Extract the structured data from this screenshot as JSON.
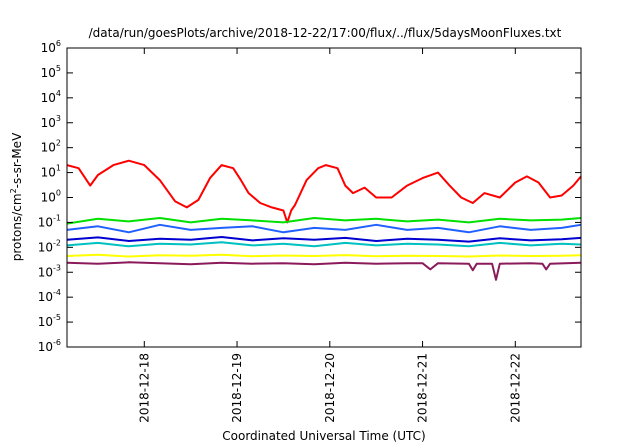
{
  "chart_data": {
    "type": "line",
    "title": "/data/run/goesPlots/archive/2018-12-22/17:00/flux/../flux/5daysMoonFluxes.txt",
    "xlabel": "Coordinated Universal Time (UTC)",
    "ylabel": "protons/cm²-s-sr-MeV",
    "ylabel_parts": {
      "base": "protons/cm",
      "sup": "2",
      "rest": "-s-sr-MeV"
    },
    "y_scale": "log",
    "ylim": [
      1e-06,
      1000000.0
    ],
    "xlim": [
      "2018-12-17T04:00",
      "2018-12-22T17:00"
    ],
    "x_ticks": [
      "2018-12-18",
      "2018-12-19",
      "2018-12-20",
      "2018-12-21",
      "2018-12-22"
    ],
    "y_ticks": [
      {
        "value": 1e-06,
        "base": "10",
        "exp": "-6"
      },
      {
        "value": 1e-05,
        "base": "10",
        "exp": "-5"
      },
      {
        "value": 0.0001,
        "base": "10",
        "exp": "-4"
      },
      {
        "value": 0.001,
        "base": "10",
        "exp": "-3"
      },
      {
        "value": 0.01,
        "base": "10",
        "exp": "-2"
      },
      {
        "value": 0.1,
        "base": "10",
        "exp": "-1"
      },
      {
        "value": 1.0,
        "base": "10",
        "exp": "0"
      },
      {
        "value": 10.0,
        "base": "10",
        "exp": "1"
      },
      {
        "value": 100.0,
        "base": "10",
        "exp": "2"
      },
      {
        "value": 1000.0,
        "base": "10",
        "exp": "3"
      },
      {
        "value": 10000.0,
        "base": "10",
        "exp": "4"
      },
      {
        "value": 100000.0,
        "base": "10",
        "exp": "5"
      },
      {
        "value": 1000000.0,
        "base": "10",
        "exp": "6"
      }
    ],
    "grid": false,
    "legend": "none",
    "series": [
      {
        "color": "#ff0000",
        "x": [
          "2018-12-17T04:00",
          "2018-12-17T07:00",
          "2018-12-17T10:00",
          "2018-12-17T12:00",
          "2018-12-17T16:00",
          "2018-12-17T20:00",
          "2018-12-18T00:00",
          "2018-12-18T04:00",
          "2018-12-18T08:00",
          "2018-12-18T11:00",
          "2018-12-18T14:00",
          "2018-12-18T17:00",
          "2018-12-18T20:00",
          "2018-12-18T23:00",
          "2018-12-19T01:00",
          "2018-12-19T03:00",
          "2018-12-19T06:00",
          "2018-12-19T09:00",
          "2018-12-19T12:00",
          "2018-12-19T13:00",
          "2018-12-19T14:00",
          "2018-12-19T15:00",
          "2018-12-19T18:00",
          "2018-12-19T21:00",
          "2018-12-19T23:00",
          "2018-12-20T02:00",
          "2018-12-20T04:00",
          "2018-12-20T06:00",
          "2018-12-20T09:00",
          "2018-12-20T12:00",
          "2018-12-20T16:00",
          "2018-12-20T20:00",
          "2018-12-21T00:00",
          "2018-12-21T04:00",
          "2018-12-21T07:00",
          "2018-12-21T10:00",
          "2018-12-21T13:00",
          "2018-12-21T16:00",
          "2018-12-21T20:00",
          "2018-12-22T00:00",
          "2018-12-22T03:00",
          "2018-12-22T06:00",
          "2018-12-22T09:00",
          "2018-12-22T12:00",
          "2018-12-22T15:00",
          "2018-12-22T17:00"
        ],
        "y": [
          20,
          15,
          3,
          8,
          20,
          30,
          20,
          5,
          0.7,
          0.4,
          0.8,
          6,
          20,
          15,
          5,
          1.5,
          0.6,
          0.4,
          0.3,
          0.1,
          0.3,
          0.5,
          5,
          15,
          20,
          15,
          3,
          1.5,
          2.5,
          1,
          1,
          3,
          6,
          10,
          3,
          1,
          0.6,
          1.5,
          1,
          4,
          7,
          4,
          1,
          1.2,
          3,
          7
        ]
      },
      {
        "color": "#00e000",
        "x": [
          "2018-12-17T04:00",
          "2018-12-17T12:00",
          "2018-12-17T20:00",
          "2018-12-18T04:00",
          "2018-12-18T12:00",
          "2018-12-18T20:00",
          "2018-12-19T04:00",
          "2018-12-19T12:00",
          "2018-12-19T20:00",
          "2018-12-20T04:00",
          "2018-12-20T12:00",
          "2018-12-20T20:00",
          "2018-12-21T04:00",
          "2018-12-21T12:00",
          "2018-12-21T20:00",
          "2018-12-22T04:00",
          "2018-12-22T12:00",
          "2018-12-22T17:00"
        ],
        "y": [
          0.09,
          0.14,
          0.11,
          0.15,
          0.1,
          0.14,
          0.12,
          0.1,
          0.15,
          0.12,
          0.14,
          0.11,
          0.13,
          0.1,
          0.14,
          0.12,
          0.13,
          0.15
        ]
      },
      {
        "color": "#00c0c0",
        "x": [
          "2018-12-17T04:00",
          "2018-12-17T12:00",
          "2018-12-17T20:00",
          "2018-12-18T04:00",
          "2018-12-18T12:00",
          "2018-12-18T20:00",
          "2018-12-19T04:00",
          "2018-12-19T12:00",
          "2018-12-19T20:00",
          "2018-12-20T04:00",
          "2018-12-20T12:00",
          "2018-12-20T20:00",
          "2018-12-21T04:00",
          "2018-12-21T12:00",
          "2018-12-21T20:00",
          "2018-12-22T04:00",
          "2018-12-22T12:00",
          "2018-12-22T17:00"
        ],
        "y": [
          0.012,
          0.015,
          0.011,
          0.014,
          0.013,
          0.016,
          0.012,
          0.014,
          0.011,
          0.015,
          0.012,
          0.014,
          0.013,
          0.011,
          0.015,
          0.012,
          0.014,
          0.013
        ]
      },
      {
        "color": "#2060ff",
        "x": [
          "2018-12-17T04:00",
          "2018-12-17T12:00",
          "2018-12-17T20:00",
          "2018-12-18T04:00",
          "2018-12-18T12:00",
          "2018-12-18T20:00",
          "2018-12-19T04:00",
          "2018-12-19T12:00",
          "2018-12-19T20:00",
          "2018-12-20T04:00",
          "2018-12-20T12:00",
          "2018-12-20T20:00",
          "2018-12-21T04:00",
          "2018-12-21T12:00",
          "2018-12-21T20:00",
          "2018-12-22T04:00",
          "2018-12-22T12:00",
          "2018-12-22T17:00"
        ],
        "y": [
          0.05,
          0.07,
          0.04,
          0.08,
          0.05,
          0.06,
          0.07,
          0.04,
          0.06,
          0.05,
          0.08,
          0.05,
          0.06,
          0.04,
          0.07,
          0.05,
          0.06,
          0.08
        ]
      },
      {
        "color": "#0000d0",
        "x": [
          "2018-12-17T04:00",
          "2018-12-17T12:00",
          "2018-12-17T20:00",
          "2018-12-18T04:00",
          "2018-12-18T12:00",
          "2018-12-18T20:00",
          "2018-12-19T04:00",
          "2018-12-19T12:00",
          "2018-12-19T20:00",
          "2018-12-20T04:00",
          "2018-12-20T12:00",
          "2018-12-20T20:00",
          "2018-12-21T04:00",
          "2018-12-21T12:00",
          "2018-12-21T20:00",
          "2018-12-22T04:00",
          "2018-12-22T12:00",
          "2018-12-22T17:00"
        ],
        "y": [
          0.02,
          0.025,
          0.018,
          0.022,
          0.02,
          0.026,
          0.019,
          0.023,
          0.02,
          0.024,
          0.018,
          0.022,
          0.02,
          0.017,
          0.023,
          0.019,
          0.021,
          0.024
        ]
      },
      {
        "color": "#ffff00",
        "x": [
          "2018-12-17T04:00",
          "2018-12-17T12:00",
          "2018-12-17T20:00",
          "2018-12-18T04:00",
          "2018-12-18T12:00",
          "2018-12-18T20:00",
          "2018-12-19T04:00",
          "2018-12-19T12:00",
          "2018-12-19T20:00",
          "2018-12-20T04:00",
          "2018-12-20T12:00",
          "2018-12-20T20:00",
          "2018-12-21T04:00",
          "2018-12-21T12:00",
          "2018-12-21T20:00",
          "2018-12-22T04:00",
          "2018-12-22T12:00",
          "2018-12-22T17:00"
        ],
        "y": [
          0.0045,
          0.005,
          0.0043,
          0.0048,
          0.0046,
          0.005,
          0.0044,
          0.0047,
          0.0045,
          0.0049,
          0.0044,
          0.0046,
          0.0045,
          0.0043,
          0.0047,
          0.0045,
          0.0046,
          0.0048
        ]
      },
      {
        "color": "#8b1a5a",
        "x": [
          "2018-12-17T04:00",
          "2018-12-17T12:00",
          "2018-12-17T20:00",
          "2018-12-18T04:00",
          "2018-12-18T12:00",
          "2018-12-18T20:00",
          "2018-12-19T04:00",
          "2018-12-19T12:00",
          "2018-12-19T20:00",
          "2018-12-20T04:00",
          "2018-12-20T12:00",
          "2018-12-20T20:00",
          "2018-12-21T00:00",
          "2018-12-21T02:00",
          "2018-12-21T04:00",
          "2018-12-21T12:00",
          "2018-12-21T13:00",
          "2018-12-21T14:00",
          "2018-12-21T18:00",
          "2018-12-21T19:00",
          "2018-12-21T20:00",
          "2018-12-22T04:00",
          "2018-12-22T07:00",
          "2018-12-22T08:00",
          "2018-12-22T09:00",
          "2018-12-22T17:00"
        ],
        "y": [
          0.0024,
          0.0022,
          0.0025,
          0.0023,
          0.0021,
          0.0024,
          0.0022,
          0.0023,
          0.0021,
          0.0024,
          0.0022,
          0.0023,
          0.0023,
          0.0013,
          0.0023,
          0.0022,
          0.0012,
          0.0022,
          0.0022,
          0.0005,
          0.0022,
          0.0023,
          0.0022,
          0.0013,
          0.0022,
          0.0024
        ]
      }
    ]
  }
}
